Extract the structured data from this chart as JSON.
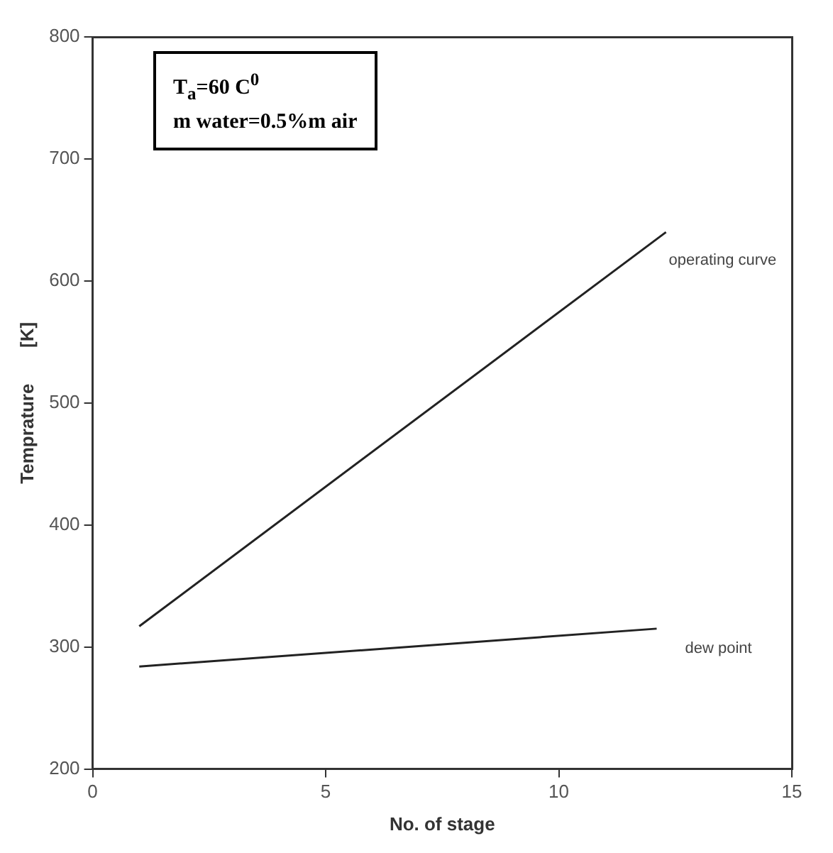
{
  "chart_data": {
    "type": "line",
    "xlabel": "No. of stage",
    "ylabel": "Temprature       [K]",
    "xlim": [
      0,
      15
    ],
    "xticks": [
      0,
      5,
      10,
      15
    ],
    "ylim": [
      200,
      800
    ],
    "yticks": [
      200,
      300,
      400,
      500,
      600,
      700,
      800
    ],
    "grid": false,
    "legend": false,
    "marker": "none",
    "line_style": "solid",
    "annotations": [
      "T$_{a}$=60 C$^{0}$",
      "m water=0.5%m air"
    ],
    "series": [
      {
        "name": "operating curve",
        "color": "#222222",
        "x": [
          1,
          12.3
        ],
        "values": [
          317,
          640
        ]
      },
      {
        "name": "dew point",
        "color": "#222222",
        "x": [
          1,
          12.1
        ],
        "values": [
          284,
          315
        ]
      }
    ]
  }
}
